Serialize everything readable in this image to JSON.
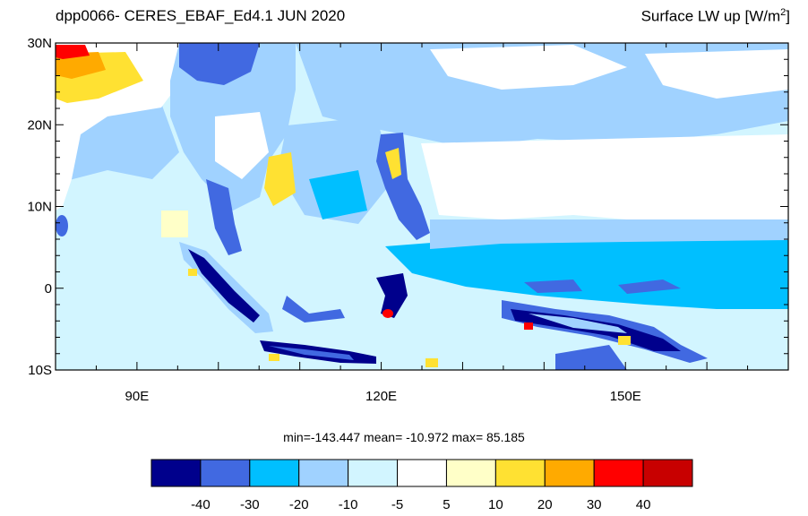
{
  "title": {
    "left": "dpp0066- CERES_EBAF_Ed4.1 JUN 2020",
    "right_main": "Surface LW up [W/m",
    "right_sup": "2",
    "right_close": "]"
  },
  "stats": {
    "text": "min=-143.447  mean= -10.972  max=  85.185"
  },
  "map": {
    "lon_range": [
      80,
      170
    ],
    "lat_range": [
      -10,
      30
    ],
    "lat_ticks": [
      {
        "lat": 30,
        "label": "30N"
      },
      {
        "lat": 20,
        "label": "20N"
      },
      {
        "lat": 10,
        "label": "10N"
      },
      {
        "lat": 0,
        "label": "0"
      },
      {
        "lat": -10,
        "label": "10S"
      }
    ],
    "lon_ticks": [
      {
        "lon": 90,
        "label": "90E"
      },
      {
        "lon": 120,
        "label": "120E"
      },
      {
        "lon": 150,
        "label": "150E"
      }
    ]
  },
  "colorbar": {
    "colors": [
      "#00008c",
      "#4169e1",
      "#00bfff",
      "#a0d2ff",
      "#d2f5ff",
      "#ffffff",
      "#ffffc8",
      "#ffe132",
      "#ffaa00",
      "#ff0000",
      "#c80000"
    ],
    "labels": [
      "-40",
      "-30",
      "-20",
      "-10",
      "-5",
      "5",
      "10",
      "20",
      "30",
      "40"
    ]
  }
}
